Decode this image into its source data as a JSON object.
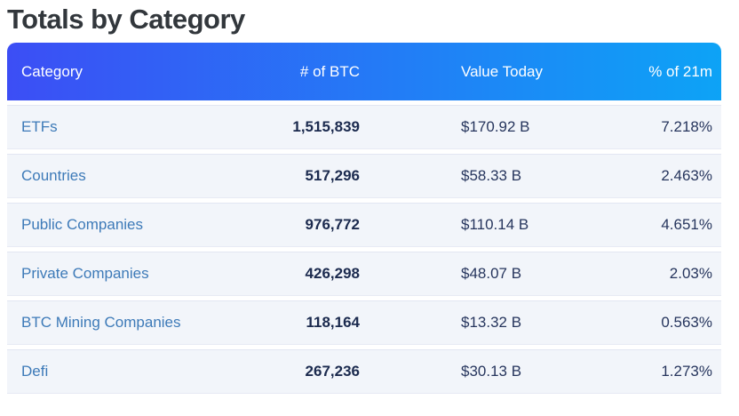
{
  "page": {
    "title": "Totals by Category"
  },
  "colors": {
    "header_gradient_left": "#3c4ef5",
    "header_gradient_right": "#0da3f6",
    "header_text": "#ffffff",
    "row_background": "#f2f5fa",
    "category_link": "#3d7ab8",
    "btc_number": "#1b2a4e",
    "value_text": "#26355d",
    "title_text": "#32373c"
  },
  "table": {
    "headers": {
      "category": "Category",
      "btc": "# of BTC",
      "value": "Value Today",
      "pct": "% of 21m"
    },
    "rows": [
      {
        "category": "ETFs",
        "btc": "1,515,839",
        "value": "$170.92 B",
        "pct": "7.218%"
      },
      {
        "category": "Countries",
        "btc": "517,296",
        "value": "$58.33 B",
        "pct": "2.463%"
      },
      {
        "category": "Public Companies",
        "btc": "976,772",
        "value": "$110.14 B",
        "pct": "4.651%"
      },
      {
        "category": "Private Companies",
        "btc": "426,298",
        "value": "$48.07 B",
        "pct": "2.03%"
      },
      {
        "category": "BTC Mining Companies",
        "btc": "118,164",
        "value": "$13.32 B",
        "pct": "0.563%"
      },
      {
        "category": "Defi",
        "btc": "267,236",
        "value": "$30.13 B",
        "pct": "1.273%"
      }
    ]
  },
  "chart_data": {
    "type": "table",
    "title": "Totals by Category",
    "columns": [
      "Category",
      "# of BTC",
      "Value Today",
      "% of 21m"
    ],
    "rows": [
      [
        "ETFs",
        1515839,
        "$170.92 B",
        "7.218%"
      ],
      [
        "Countries",
        517296,
        "$58.33 B",
        "2.463%"
      ],
      [
        "Public Companies",
        976772,
        "$110.14 B",
        "4.651%"
      ],
      [
        "Private Companies",
        426298,
        "$48.07 B",
        "2.03%"
      ],
      [
        "BTC Mining Companies",
        118164,
        "$13.32 B",
        "0.563%"
      ],
      [
        "Defi",
        267236,
        "$30.13 B",
        "1.273%"
      ]
    ]
  }
}
